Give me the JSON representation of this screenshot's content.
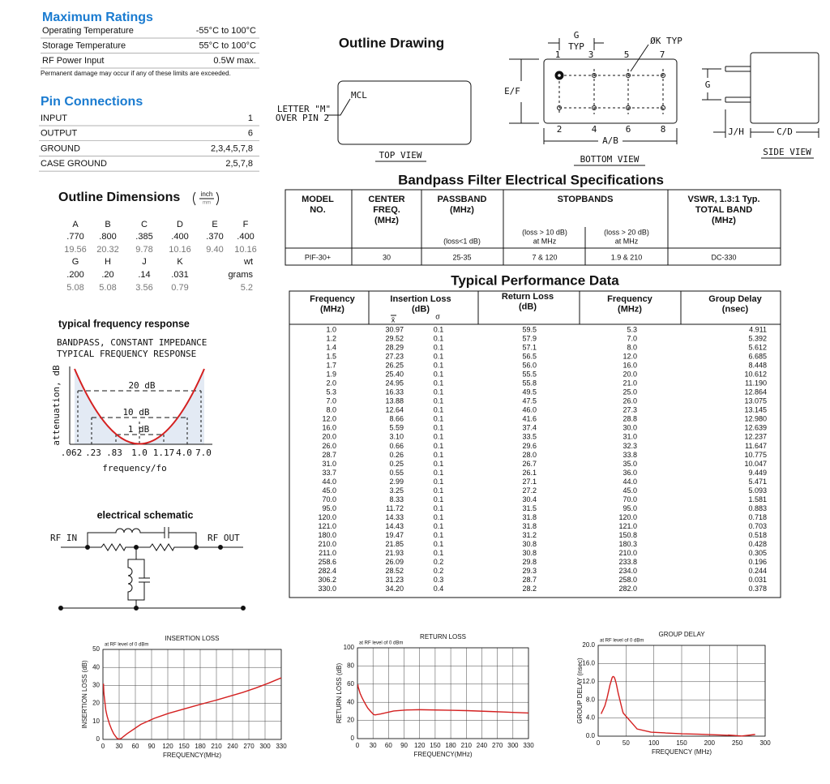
{
  "max_ratings": {
    "title": "Maximum Ratings",
    "rows": [
      [
        "Operating Temperature",
        "-55°C to 100°C"
      ],
      [
        "Storage Temperature",
        "55°C to 100°C"
      ],
      [
        "RF Power Input",
        "0.5W max."
      ]
    ],
    "note": "Permanent damage may occur if any of these limits are exceeded."
  },
  "pin_connections": {
    "title": "Pin Connections",
    "rows": [
      [
        "INPUT",
        "1"
      ],
      [
        "OUTPUT",
        "6"
      ],
      [
        "GROUND",
        "2,3,4,5,7,8"
      ],
      [
        "CASE GROUND",
        "2,5,7,8"
      ]
    ]
  },
  "outline_dimensions": {
    "title": "Outline Dimensions",
    "unit_top": "inch",
    "unit_bottom": "mm",
    "rows": [
      [
        "A",
        "B",
        "C",
        "D",
        "E",
        "F"
      ],
      [
        ".770",
        ".800",
        ".385",
        ".400",
        ".370",
        ".400"
      ],
      [
        "19.56",
        "20.32",
        "9.78",
        "10.16",
        "9.40",
        "10.16"
      ],
      [
        "G",
        "H",
        "J",
        "K",
        "wt"
      ],
      [
        ".200",
        ".20",
        ".14",
        ".031",
        "grams"
      ],
      [
        "5.08",
        "5.08",
        "3.56",
        "0.79",
        "5.2"
      ]
    ]
  },
  "frequency_response": {
    "title": "typical frequency response",
    "heading": [
      "BANDPASS, CONSTANT IMPEDANCE",
      "TYPICAL FREQUENCY RESPONSE"
    ],
    "y_label": "attenuation, dB",
    "levels": [
      "20 dB",
      "10 dB",
      "1 dB"
    ],
    "x_labels": [
      ".062",
      ".23",
      ".83",
      "1.0",
      "1.17",
      "4.0",
      "7.0"
    ],
    "x_label": "frequency/fo"
  },
  "schematic": {
    "title": "electrical schematic",
    "input": "RF IN",
    "output": "RF OUT"
  },
  "outline_drawing": {
    "title": "Outline Drawing",
    "top_view": {
      "mark": "MCL",
      "note": [
        "LETTER \"M\"",
        "OVER PIN 2"
      ],
      "label": "TOP VIEW"
    },
    "bottom_view": {
      "g": "G",
      "typ": "TYP",
      "k": "ØK TYP",
      "pins_top": [
        "1",
        "3",
        "5",
        "7"
      ],
      "pins_bottom": [
        "2",
        "4",
        "6",
        "8"
      ],
      "height": "E/F",
      "width": "A/B",
      "label": "BOTTOM VIEW"
    },
    "side_view": {
      "g": "G",
      "jh": "J/H",
      "cd": "C/D",
      "label": "SIDE VIEW"
    }
  },
  "specs": {
    "title": "Bandpass Filter Electrical Specifications",
    "headers": {
      "model": [
        "MODEL",
        "NO."
      ],
      "center": [
        "CENTER",
        "FREQ.",
        "(MHz)"
      ],
      "passband": [
        "PASSBAND",
        "(MHz)"
      ],
      "passband_note": "(loss<1 dB)",
      "stopbands": "STOPBANDS",
      "stop1": [
        "(loss > 10 dB)",
        "at MHz"
      ],
      "stop2": [
        "(loss > 20 dB)",
        "at MHz"
      ],
      "vswr": [
        "VSWR, 1.3:1 Typ.",
        "TOTAL BAND",
        "(MHz)"
      ]
    },
    "row": [
      "PIF-30+",
      "30",
      "25-35",
      "7 & 120",
      "1.9 & 210",
      "DC-330"
    ]
  },
  "performance": {
    "title": "Typical Performance Data",
    "headers": {
      "freq": [
        "Frequency",
        "(MHz)"
      ],
      "il": [
        "Insertion Loss",
        "(dB)"
      ],
      "mean": "x̄",
      "sigma": "σ",
      "rl": [
        "Return Loss",
        "(dB)"
      ],
      "freq2": [
        "Frequency",
        "(MHz)"
      ],
      "gd": [
        "Group Delay",
        "(nsec)"
      ]
    },
    "rows": [
      [
        "1.0",
        "30.97",
        "0.1",
        "59.5",
        "5.3",
        "4.911"
      ],
      [
        "1.2",
        "29.52",
        "0.1",
        "57.9",
        "7.0",
        "5.392"
      ],
      [
        "1.4",
        "28.29",
        "0.1",
        "57.1",
        "8.0",
        "5.612"
      ],
      [
        "1.5",
        "27.23",
        "0.1",
        "56.5",
        "12.0",
        "6.685"
      ],
      [
        "1.7",
        "26.25",
        "0.1",
        "56.0",
        "16.0",
        "8.448"
      ],
      [
        "1.9",
        "25.40",
        "0.1",
        "55.5",
        "20.0",
        "10.612"
      ],
      [
        "2.0",
        "24.95",
        "0.1",
        "55.8",
        "21.0",
        "11.190"
      ],
      [
        "5.3",
        "16.33",
        "0.1",
        "49.5",
        "25.0",
        "12.864"
      ],
      [
        "7.0",
        "13.88",
        "0.1",
        "47.5",
        "26.0",
        "13.075"
      ],
      [
        "8.0",
        "12.64",
        "0.1",
        "46.0",
        "27.3",
        "13.145"
      ],
      [
        "12.0",
        "8.66",
        "0.1",
        "41.6",
        "28.8",
        "12.980"
      ],
      [
        "16.0",
        "5.59",
        "0.1",
        "37.4",
        "30.0",
        "12.639"
      ],
      [
        "20.0",
        "3.10",
        "0.1",
        "33.5",
        "31.0",
        "12.237"
      ],
      [
        "26.0",
        "0.66",
        "0.1",
        "29.6",
        "32.3",
        "11.647"
      ],
      [
        "28.7",
        "0.26",
        "0.1",
        "28.0",
        "33.8",
        "10.775"
      ],
      [
        "31.0",
        "0.25",
        "0.1",
        "26.7",
        "35.0",
        "10.047"
      ],
      [
        "33.7",
        "0.55",
        "0.1",
        "26.1",
        "36.0",
        "9.449"
      ],
      [
        "44.0",
        "2.99",
        "0.1",
        "27.1",
        "44.0",
        "5.471"
      ],
      [
        "45.0",
        "3.25",
        "0.1",
        "27.2",
        "45.0",
        "5.093"
      ],
      [
        "70.0",
        "8.33",
        "0.1",
        "30.4",
        "70.0",
        "1.581"
      ],
      [
        "95.0",
        "11.72",
        "0.1",
        "31.5",
        "95.0",
        "0.883"
      ],
      [
        "120.0",
        "14.33",
        "0.1",
        "31.8",
        "120.0",
        "0.718"
      ],
      [
        "121.0",
        "14.43",
        "0.1",
        "31.8",
        "121.0",
        "0.703"
      ],
      [
        "180.0",
        "19.47",
        "0.1",
        "31.2",
        "150.8",
        "0.518"
      ],
      [
        "210.0",
        "21.85",
        "0.1",
        "30.8",
        "180.3",
        "0.428"
      ],
      [
        "211.0",
        "21.93",
        "0.1",
        "30.8",
        "210.0",
        "0.305"
      ],
      [
        "258.6",
        "26.09",
        "0.2",
        "29.8",
        "233.8",
        "0.196"
      ],
      [
        "282.4",
        "28.52",
        "0.2",
        "29.3",
        "234.0",
        "0.244"
      ],
      [
        "306.2",
        "31.23",
        "0.3",
        "28.7",
        "258.0",
        "0.031"
      ],
      [
        "330.0",
        "34.20",
        "0.4",
        "28.2",
        "282.0",
        "0.378"
      ]
    ]
  },
  "chart_data": [
    {
      "type": "line",
      "title": "INSERTION LOSS",
      "subtitle": "at RF level of 0 dBm",
      "x_label": "FREQUENCY(MHz)",
      "y_label": "INSERTION LOSS (dB)",
      "x": [
        1.0,
        1.2,
        1.4,
        1.5,
        1.7,
        1.9,
        2.0,
        5.3,
        7.0,
        8.0,
        12.0,
        16.0,
        20.0,
        26.0,
        28.7,
        31.0,
        33.7,
        44.0,
        45.0,
        70.0,
        95.0,
        120.0,
        121.0,
        180.0,
        210.0,
        211.0,
        258.6,
        282.4,
        306.2,
        330.0
      ],
      "series": [
        {
          "color": "#d42020",
          "values": [
            30.97,
            29.52,
            28.29,
            27.23,
            26.25,
            25.4,
            24.95,
            16.33,
            13.88,
            12.64,
            8.66,
            5.59,
            3.1,
            0.66,
            0.26,
            0.25,
            0.55,
            2.99,
            3.25,
            8.33,
            11.72,
            14.33,
            14.43,
            19.47,
            21.85,
            21.93,
            26.09,
            28.52,
            31.23,
            34.2
          ]
        }
      ],
      "xlim": [
        0,
        330
      ],
      "xticks": [
        0,
        30,
        60,
        90,
        120,
        150,
        180,
        210,
        240,
        270,
        300,
        330
      ],
      "ylim": [
        0,
        50
      ],
      "yticks": [
        0,
        10,
        20,
        30,
        40,
        50
      ],
      "grid": true
    },
    {
      "type": "line",
      "title": "RETURN LOSS",
      "subtitle": "at RF level of 0 dBm",
      "x_label": "FREQUENCY(MHz)",
      "y_label": "RETURN LOSS (dB)",
      "x": [
        1.0,
        1.2,
        1.4,
        1.5,
        1.7,
        1.9,
        2.0,
        5.3,
        7.0,
        8.0,
        12.0,
        16.0,
        20.0,
        26.0,
        28.7,
        31.0,
        33.7,
        44.0,
        45.0,
        70.0,
        95.0,
        120.0,
        121.0,
        180.0,
        210.0,
        211.0,
        258.6,
        282.4,
        306.2,
        330.0
      ],
      "series": [
        {
          "color": "#d42020",
          "values": [
            59.5,
            57.9,
            57.1,
            56.5,
            56.0,
            55.5,
            55.8,
            49.5,
            47.5,
            46.0,
            41.6,
            37.4,
            33.5,
            29.6,
            28.0,
            26.7,
            26.1,
            27.1,
            27.2,
            30.4,
            31.5,
            31.8,
            31.8,
            31.2,
            30.8,
            30.8,
            29.8,
            29.3,
            28.7,
            28.2
          ]
        }
      ],
      "xlim": [
        0,
        330
      ],
      "xticks": [
        0,
        30,
        60,
        90,
        120,
        150,
        180,
        210,
        240,
        270,
        300,
        330
      ],
      "ylim": [
        0,
        100
      ],
      "yticks": [
        0,
        20,
        40,
        60,
        80,
        100
      ],
      "grid": true
    },
    {
      "type": "line",
      "title": "GROUP DELAY",
      "subtitle": "at RF level of 0 dBm",
      "x_label": "FREQUENCY (MHz)",
      "y_label": "GROUP DELAY (nsec)",
      "x": [
        5.3,
        7.0,
        8.0,
        12.0,
        16.0,
        20.0,
        21.0,
        25.0,
        26.0,
        27.3,
        28.8,
        30.0,
        31.0,
        32.3,
        33.8,
        35.0,
        36.0,
        44.0,
        45.0,
        70.0,
        95.0,
        120.0,
        121.0,
        150.8,
        180.3,
        210.0,
        233.8,
        234.0,
        258.0,
        282.0
      ],
      "series": [
        {
          "color": "#d42020",
          "values": [
            4.911,
            5.392,
            5.612,
            6.685,
            8.448,
            10.612,
            11.19,
            12.864,
            13.075,
            13.145,
            12.98,
            12.639,
            12.237,
            11.647,
            10.775,
            10.047,
            9.449,
            5.471,
            5.093,
            1.581,
            0.883,
            0.718,
            0.703,
            0.518,
            0.428,
            0.305,
            0.196,
            0.244,
            0.031,
            0.378
          ]
        }
      ],
      "xlim": [
        0,
        300
      ],
      "xticks": [
        0,
        50,
        100,
        150,
        200,
        250,
        300
      ],
      "ylim": [
        0,
        20
      ],
      "yticks": [
        {
          "value": 0,
          "label": "0.0"
        },
        {
          "value": 4,
          "label": "4.0"
        },
        {
          "value": 8,
          "label": "8.0"
        },
        {
          "value": 12,
          "label": "12.0"
        },
        {
          "value": 16,
          "label": "16.0"
        },
        {
          "value": 20,
          "label": "20.0"
        }
      ],
      "grid": true
    }
  ]
}
